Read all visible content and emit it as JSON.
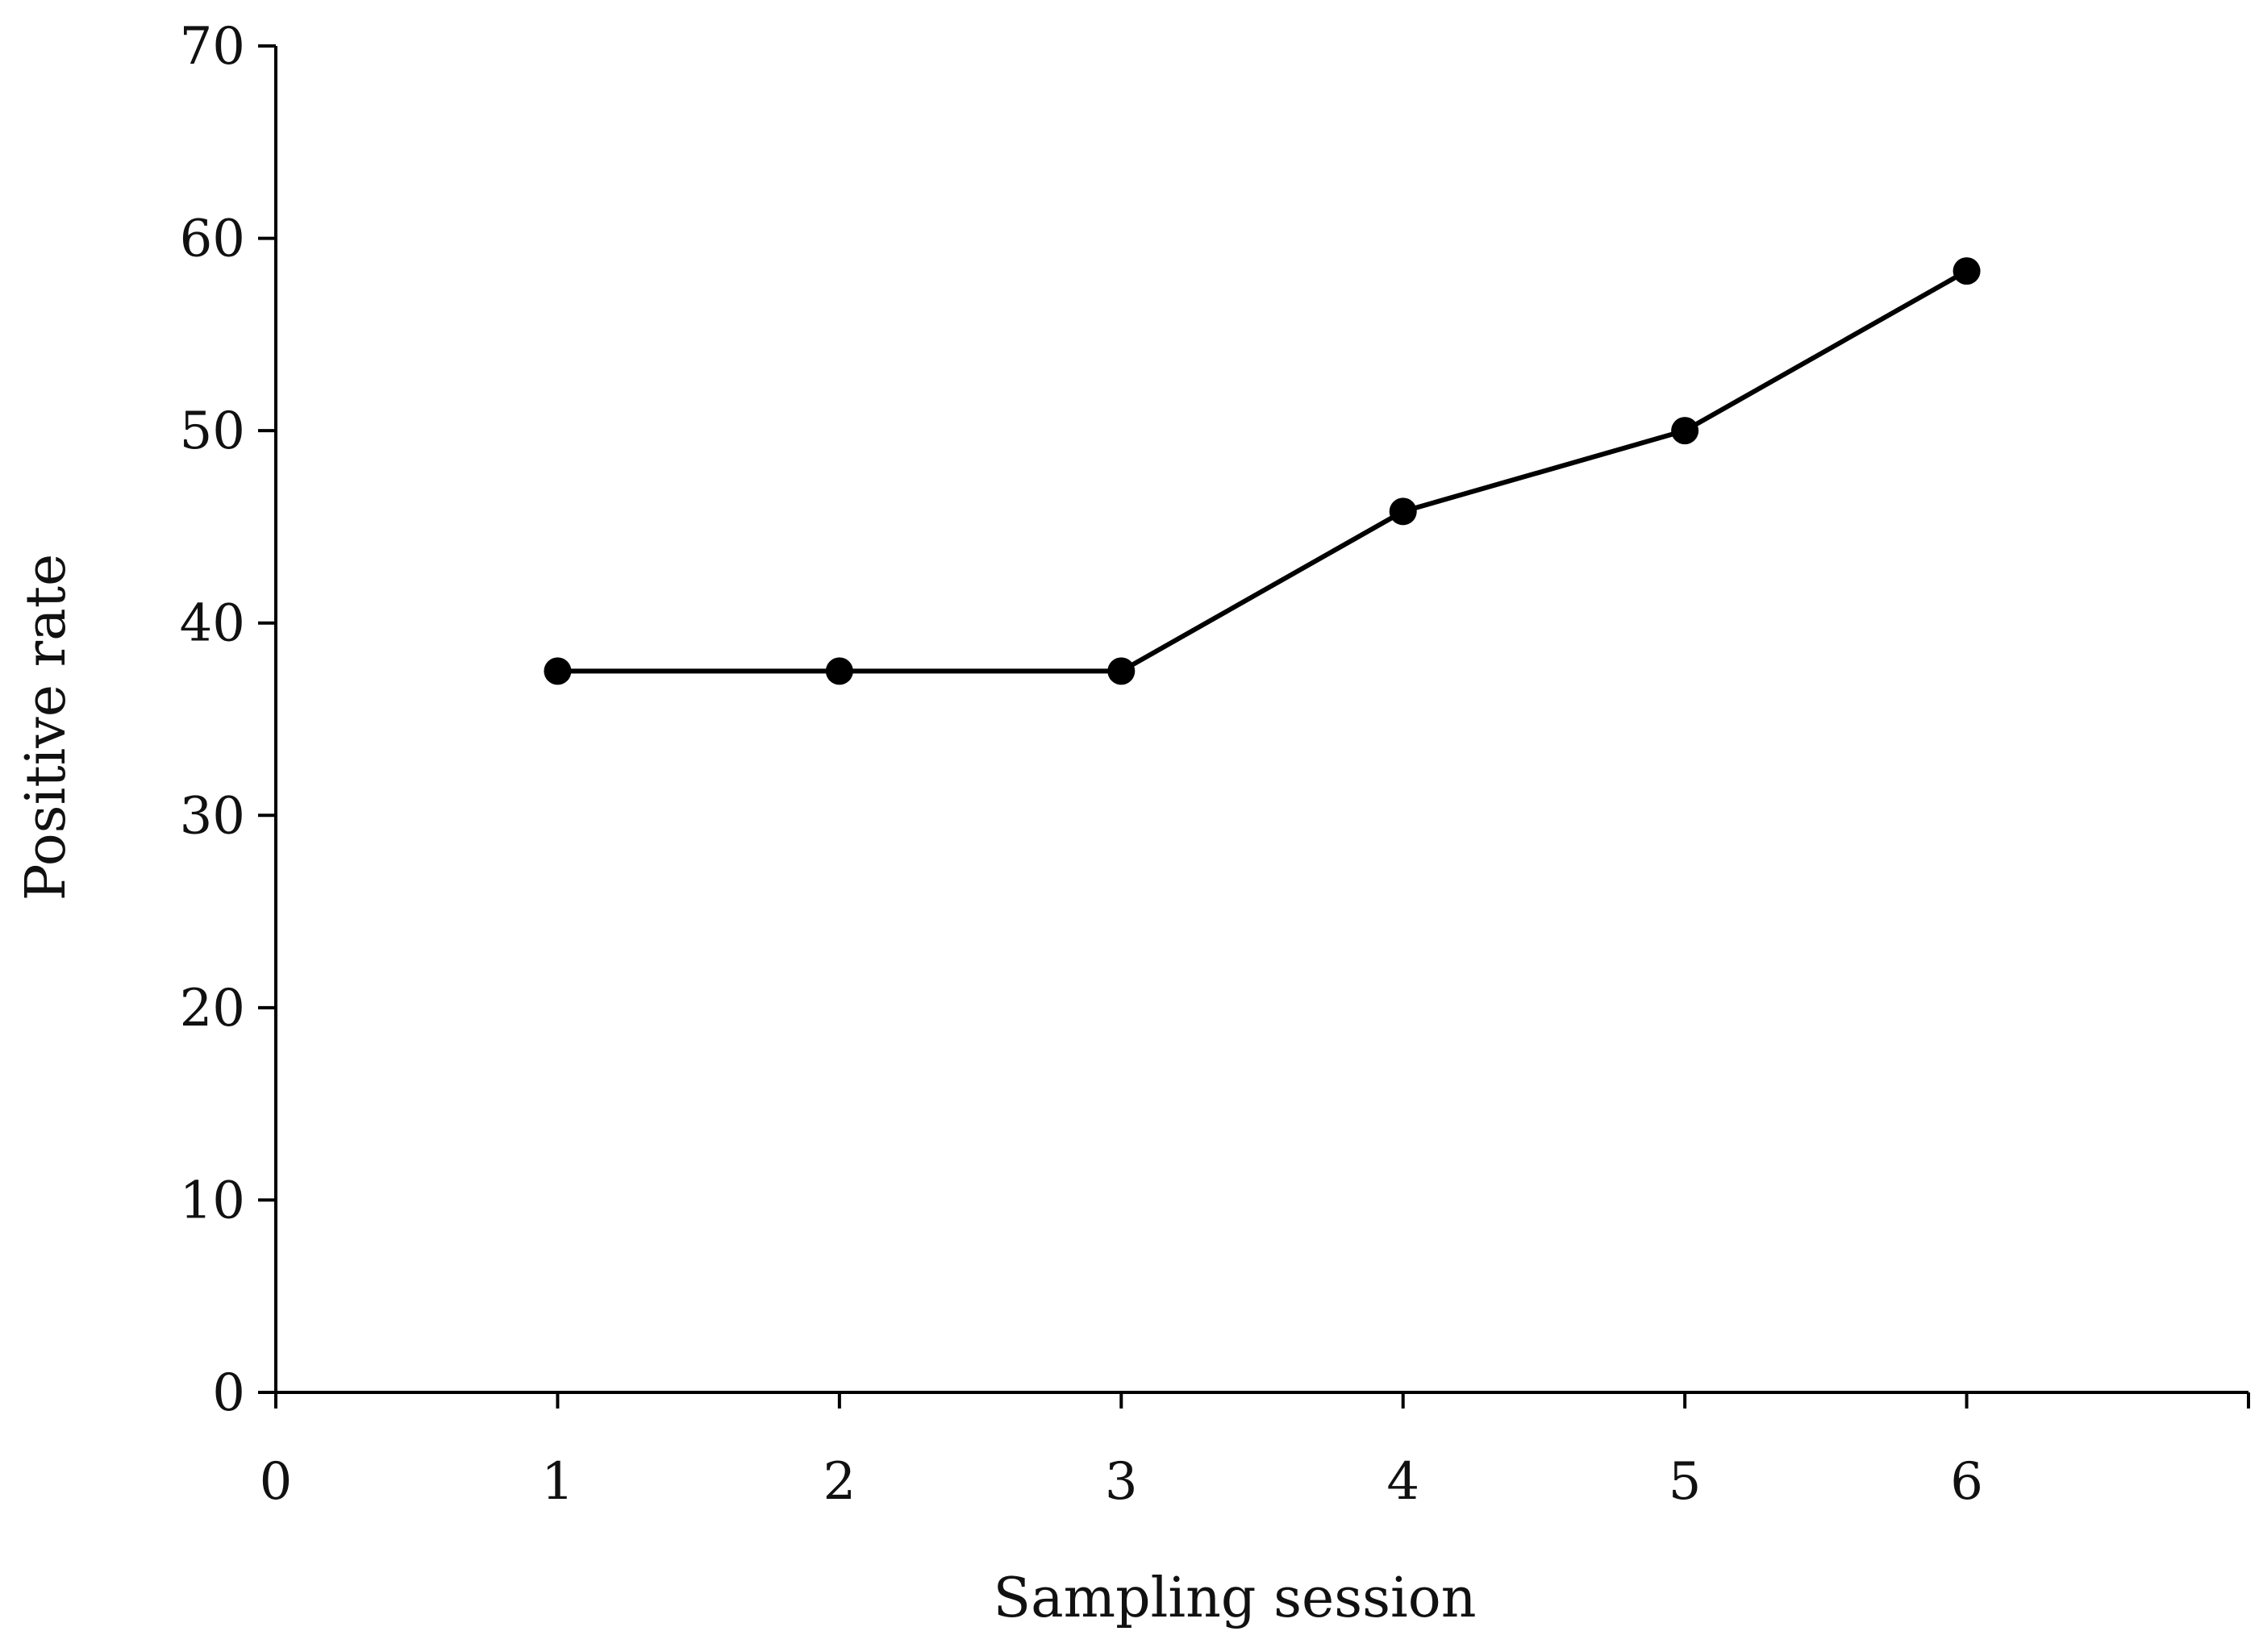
{
  "chart_data": {
    "type": "line",
    "xlabel": "Sampling session",
    "ylabel": "Positive rate",
    "xlim": [
      0,
      7
    ],
    "ylim": [
      0,
      70
    ],
    "x_ticks": [
      0,
      1,
      2,
      3,
      4,
      5,
      6
    ],
    "y_ticks": [
      0,
      10,
      20,
      30,
      40,
      50,
      60,
      70
    ],
    "grid": false,
    "legend": "none",
    "series": [
      {
        "x": [
          1,
          2,
          3,
          4,
          5,
          6
        ],
        "values": [
          37.5,
          37.5,
          37.5,
          45.8,
          50.0,
          58.3
        ],
        "color": "#000000",
        "marker": "circle"
      }
    ]
  }
}
